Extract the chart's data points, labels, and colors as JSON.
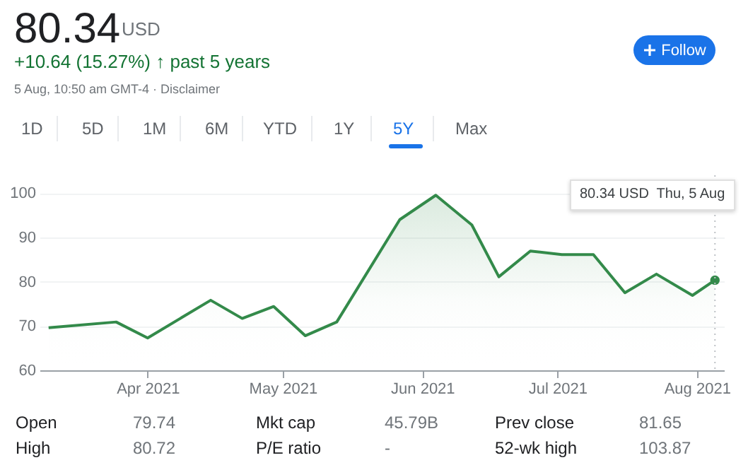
{
  "chart_data": {
    "type": "area",
    "x": [
      "2021-03-10",
      "2021-03-25",
      "2021-04-01",
      "2021-04-15",
      "2021-04-22",
      "2021-04-29",
      "2021-05-06",
      "2021-05-13",
      "2021-05-27",
      "2021-06-04",
      "2021-06-12",
      "2021-06-18",
      "2021-06-25",
      "2021-07-02",
      "2021-07-09",
      "2021-07-16",
      "2021-07-23",
      "2021-07-31",
      "2021-08-05"
    ],
    "values": [
      69.6,
      70.9,
      67.3,
      75.8,
      71.7,
      74.4,
      67.8,
      70.9,
      94.0,
      99.5,
      92.8,
      81.1,
      86.9,
      86.1,
      86.1,
      77.5,
      81.7,
      76.9,
      80.34
    ],
    "color": "#338a4a",
    "xlim": [
      "2021-03-08",
      "2021-08-07"
    ],
    "xticks": [
      {
        "value": "2021-04-01",
        "label": "Apr 2021"
      },
      {
        "value": "2021-05-01",
        "label": "May 2021"
      },
      {
        "value": "2021-06-01",
        "label": "Jun 2021"
      },
      {
        "value": "2021-07-01",
        "label": "Jul 2021"
      },
      {
        "value": "2021-08-01",
        "label": "Aug 2021"
      }
    ],
    "ylim": [
      60,
      104
    ],
    "yticks": [
      60,
      70,
      80,
      90,
      100
    ],
    "grid": "y",
    "ref_lines": [
      {
        "axis": "x",
        "value": "2021-08-05",
        "color": "#bdc1c6",
        "line_style": "dotted"
      }
    ],
    "annotations": [
      "80.34",
      "USD",
      "+10.64 (15.27%) ↑ past 5 years",
      "5 Aug, 10:50 am GMT-4 · Disclaimer",
      "1D",
      "5D",
      "1M",
      "6M",
      "YTD",
      "1Y",
      "5Y",
      "Max",
      "Follow",
      "Open",
      "79.74",
      "Mkt cap",
      "45.79B",
      "Prev close",
      "81.65",
      "High",
      "80.72",
      "P/E ratio",
      "-",
      "52-wk high",
      "103.87",
      "80.34 USD  Thu, 5 Aug"
    ]
  }
}
